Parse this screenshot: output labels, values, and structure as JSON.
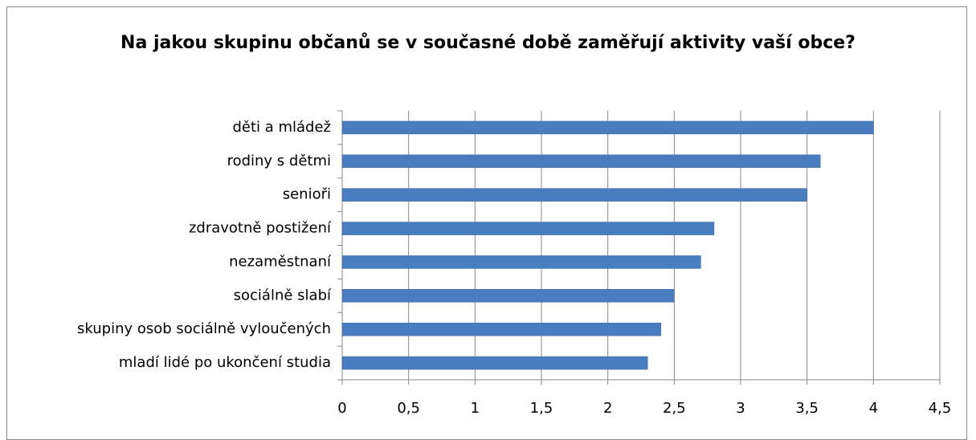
{
  "chart_data": {
    "type": "bar",
    "orientation": "horizontal",
    "title": "Na jakou skupinu občanů se v současné době zaměřují aktivity vaší obce?",
    "categories": [
      "děti a mládež",
      "rodiny s dětmi",
      "senioři",
      "zdravotně postižení",
      "nezaměstnaní",
      "sociálně slabí",
      "skupiny osob sociálně vyloučených",
      "mladí lidé po ukončení studia"
    ],
    "values": [
      4,
      3.6,
      3.5,
      2.8,
      2.7,
      2.5,
      2.4,
      2.3
    ],
    "color": "#4a7cc0",
    "xlim": [
      0,
      4.5
    ],
    "xticks": [
      0,
      {
        "value": 0.5,
        "label": "0,5"
      },
      1,
      {
        "value": 1.5,
        "label": "1,5"
      },
      2,
      {
        "value": 2.5,
        "label": "2,5"
      },
      3,
      {
        "value": 3.5,
        "label": "3,5"
      },
      4,
      {
        "value": 4.5,
        "label": "4,5"
      }
    ],
    "grid": true
  }
}
